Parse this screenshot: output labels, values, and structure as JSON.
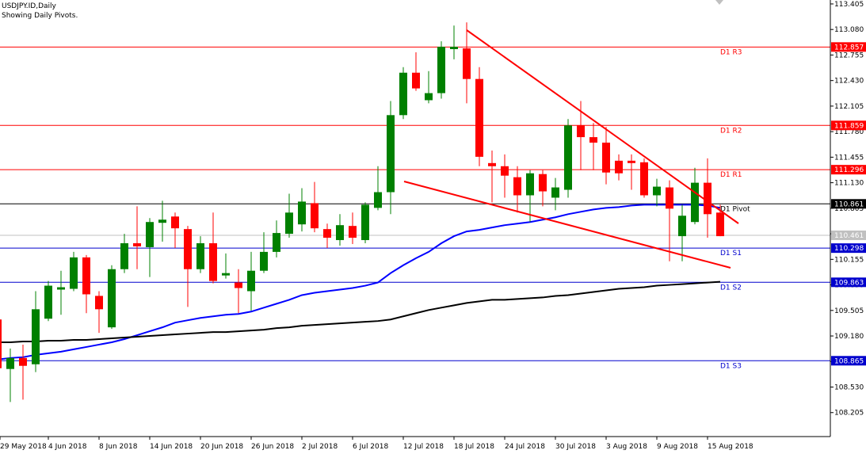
{
  "chart_data": {
    "type": "candlestick",
    "title": "USDJPY.ID,Daily",
    "subtitle": "Showing Daily Pivots.",
    "categories": [
      "29 May 2018",
      null,
      null,
      null,
      "4 Jun 2018",
      null,
      null,
      null,
      "8 Jun 2018",
      null,
      null,
      null,
      "14 Jun 2018",
      null,
      null,
      null,
      "20 Jun 2018",
      null,
      null,
      null,
      "26 Jun 2018",
      null,
      null,
      null,
      "2 Jul 2018",
      null,
      null,
      null,
      "6 Jul 2018",
      null,
      null,
      null,
      "12 Jul 2018",
      null,
      null,
      null,
      "18 Jul 2018",
      null,
      null,
      null,
      "24 Jul 2018",
      null,
      null,
      null,
      "30 Jul 2018",
      null,
      null,
      null,
      "3 Aug 2018",
      null,
      null,
      null,
      "9 Aug 2018",
      null,
      null,
      null,
      "15 Aug 2018",
      null
    ],
    "open": [
      109.39,
      108.76,
      108.9,
      108.82,
      109.4,
      109.77,
      109.78,
      110.18,
      109.69,
      109.29,
      110.03,
      110.36,
      110.31,
      110.62,
      110.7,
      110.54,
      110.03,
      110.36,
      109.95,
      109.86,
      109.75,
      110.01,
      110.25,
      110.48,
      110.6,
      110.87,
      110.54,
      110.4,
      110.58,
      110.4,
      110.81,
      111.01,
      111.99,
      112.53,
      112.18,
      112.27,
      112.83,
      112.84,
      112.45,
      111.38,
      111.34,
      111.2,
      110.97,
      111.24,
      110.94,
      111.04,
      111.86,
      111.71,
      111.64,
      111.41,
      111.41,
      111.39,
      110.97,
      111.07,
      110.45,
      110.63,
      111.13,
      110.75
    ],
    "high": [
      109.42,
      109.02,
      109.07,
      109.75,
      109.88,
      110.01,
      110.25,
      110.21,
      109.75,
      110.08,
      110.48,
      110.83,
      110.68,
      110.9,
      110.75,
      110.58,
      110.45,
      110.75,
      110.23,
      110.03,
      110.25,
      110.5,
      110.65,
      110.99,
      111.06,
      111.14,
      110.61,
      110.73,
      110.75,
      110.88,
      111.34,
      112.17,
      112.6,
      112.79,
      112.55,
      112.93,
      113.13,
      113.17,
      112.6,
      111.54,
      111.49,
      111.34,
      111.29,
      111.29,
      111.19,
      111.94,
      112.17,
      111.89,
      111.84,
      111.49,
      111.49,
      111.44,
      111.18,
      111.16,
      110.85,
      111.32,
      111.44,
      110.85
    ],
    "low": [
      108.72,
      108.34,
      108.37,
      108.72,
      109.37,
      109.45,
      109.75,
      109.47,
      109.22,
      109.27,
      109.98,
      110.03,
      109.93,
      110.38,
      110.3,
      109.55,
      109.98,
      109.85,
      109.91,
      109.47,
      109.5,
      109.98,
      110.18,
      110.43,
      110.51,
      110.5,
      110.3,
      110.33,
      110.35,
      110.36,
      110.78,
      110.73,
      111.94,
      112.3,
      112.14,
      112.2,
      112.7,
      112.14,
      111.34,
      110.88,
      110.94,
      110.75,
      110.63,
      110.83,
      110.78,
      110.94,
      111.29,
      111.29,
      111.11,
      111.16,
      111.04,
      110.94,
      110.83,
      110.13,
      110.13,
      110.6,
      110.43,
      110.45
    ],
    "close": [
      108.77,
      108.9,
      108.8,
      109.52,
      109.82,
      109.8,
      110.18,
      109.71,
      109.52,
      110.03,
      110.36,
      110.32,
      110.63,
      110.66,
      110.55,
      110.03,
      110.36,
      109.88,
      109.98,
      109.79,
      110.01,
      110.25,
      110.49,
      110.75,
      110.89,
      110.55,
      110.43,
      110.59,
      110.43,
      110.85,
      111.01,
      111.99,
      112.53,
      112.33,
      112.27,
      112.86,
      112.86,
      112.45,
      111.46,
      111.34,
      111.22,
      110.97,
      111.25,
      111.02,
      111.07,
      111.86,
      111.71,
      111.64,
      111.26,
      111.25,
      111.38,
      110.97,
      111.08,
      110.8,
      110.71,
      111.13,
      110.73,
      110.45
    ],
    "up_color": "#008000",
    "down_color": "#ff0000",
    "lines": [
      {
        "color": "#0000ff",
        "values": [
          108.88,
          108.9,
          108.91,
          108.94,
          108.96,
          108.98,
          109.01,
          109.04,
          109.07,
          109.1,
          109.14,
          109.19,
          109.24,
          109.29,
          109.35,
          109.38,
          109.41,
          109.43,
          109.45,
          109.46,
          109.49,
          109.54,
          109.59,
          109.64,
          109.7,
          109.73,
          109.75,
          109.77,
          109.79,
          109.82,
          109.86,
          109.98,
          110.08,
          110.17,
          110.25,
          110.36,
          110.45,
          110.51,
          110.53,
          110.56,
          110.59,
          110.61,
          110.63,
          110.66,
          110.69,
          110.73,
          110.76,
          110.79,
          110.81,
          110.82,
          110.84,
          110.85,
          110.85,
          110.85,
          110.85,
          110.85,
          110.84,
          110.81
        ]
      },
      {
        "color": "#000000",
        "values": [
          109.1,
          109.1,
          109.11,
          109.11,
          109.12,
          109.12,
          109.13,
          109.13,
          109.14,
          109.15,
          109.16,
          109.17,
          109.18,
          109.19,
          109.2,
          109.21,
          109.22,
          109.23,
          109.23,
          109.24,
          109.25,
          109.26,
          109.28,
          109.29,
          109.31,
          109.32,
          109.33,
          109.34,
          109.35,
          109.36,
          109.37,
          109.39,
          109.43,
          109.47,
          109.51,
          109.54,
          109.57,
          109.6,
          109.62,
          109.64,
          109.64,
          109.65,
          109.66,
          109.67,
          109.69,
          109.7,
          109.72,
          109.74,
          109.76,
          109.78,
          109.79,
          109.8,
          109.82,
          109.83,
          109.84,
          109.85,
          109.86,
          109.87
        ]
      }
    ],
    "levels": [
      {
        "label": "D1 R3",
        "value": 112.857,
        "color": "#ff0000"
      },
      {
        "label": "D1 R2",
        "value": 111.859,
        "color": "#ff0000"
      },
      {
        "label": "D1 R1",
        "value": 111.296,
        "color": "#ff0000"
      },
      {
        "label": "D1 Pivot",
        "value": 110.861,
        "color": "#000000"
      },
      {
        "label": "D1 S1",
        "value": 110.298,
        "color": "#0000cd"
      },
      {
        "label": "D1 S2",
        "value": 109.863,
        "color": "#0000cd"
      },
      {
        "label": "D1 S3",
        "value": 108.865,
        "color": "#0000cd"
      }
    ],
    "current_price": {
      "value": 110.461,
      "color": "#c0c0c0"
    },
    "ylim": [
      107.9,
      113.455
    ],
    "yticks": [
      113.405,
      {
        "value": 113.08,
        "label": "113.080"
      },
      112.755,
      {
        "value": 112.43,
        "label": "112.430"
      },
      112.105,
      {
        "value": 111.78,
        "label": "111.780"
      },
      111.455,
      {
        "value": 111.13,
        "label": "111.130"
      },
      110.805,
      {
        "value": 110.48,
        "label": "110.480"
      },
      110.155,
      {
        "value": 109.83,
        "label": "109.830"
      },
      109.505,
      {
        "value": 109.18,
        "label": "109.180"
      },
      108.855,
      {
        "value": 108.53,
        "label": "108.530"
      },
      108.205
    ]
  }
}
